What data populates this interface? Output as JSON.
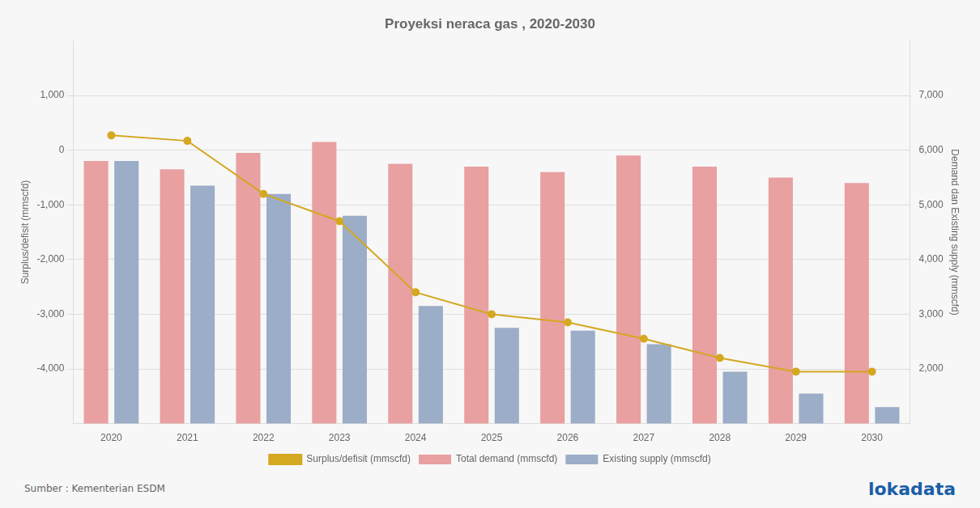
{
  "chart_data": {
    "type": "bar",
    "title": "Proyeksi neraca gas , 2020-2030",
    "categories": [
      "2020",
      "2021",
      "2022",
      "2023",
      "2024",
      "2025",
      "2026",
      "2027",
      "2028",
      "2029",
      "2030"
    ],
    "series": [
      {
        "name": "Surplus/defisit (mmscfd)",
        "type": "line",
        "color": "#d4a820",
        "marker": "circle",
        "values": [
          270,
          170,
          -800,
          -1300,
          -2600,
          -3000,
          -3150,
          -3450,
          -3800,
          -4050,
          -4050
        ]
      },
      {
        "name": "Total demand (mmscfd)",
        "type": "bar",
        "color": "#e8a0a0",
        "axis": "y2",
        "values": [
          5800,
          5650,
          5950,
          6150,
          5750,
          5700,
          5600,
          5900,
          5700,
          5500,
          5400
        ]
      },
      {
        "name": "Existing supply (mmscfd)",
        "type": "bar",
        "color": "#9badc7",
        "axis": "y2",
        "values": [
          5800,
          5350,
          5200,
          4800,
          3150,
          2750,
          2700,
          2450,
          1950,
          1550,
          1300
        ]
      }
    ],
    "y_label": "Surplus/defisit (mmscfd)",
    "y2_label": "Demand dan Existing supply (mmscfd)",
    "ylim": [
      -5000,
      2000
    ],
    "yticks": [
      {
        "value": 1000,
        "label": "1,000"
      },
      0,
      {
        "value": -1000,
        "label": "-1,000"
      },
      {
        "value": -2000,
        "label": "-2,000"
      },
      {
        "value": -3000,
        "label": "-3,000"
      },
      {
        "value": -4000,
        "label": "-4,000"
      }
    ],
    "y2lim": [
      1000,
      8000
    ],
    "y2ticks": [
      {
        "value": 7000,
        "label": "7,000"
      },
      {
        "value": 6000,
        "label": "6,000"
      },
      {
        "value": 5000,
        "label": "5,000"
      },
      {
        "value": 4000,
        "label": "4,000"
      },
      {
        "value": 3000,
        "label": "3,000"
      },
      {
        "value": 2000,
        "label": "2,000"
      }
    ],
    "grid": true,
    "legend": "bottom",
    "annotations": [
      "Sumber : Kementerian ESDM",
      "lokadata"
    ]
  }
}
